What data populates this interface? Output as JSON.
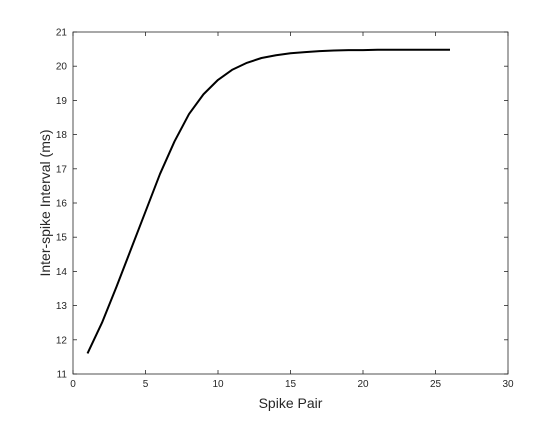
{
  "chart_data": {
    "type": "line",
    "title": "",
    "xlabel": "Spike Pair",
    "ylabel": "Inter-spike Interval (ms)",
    "xlim": [
      0,
      30
    ],
    "ylim": [
      11,
      21
    ],
    "xticks": [
      0,
      5,
      10,
      15,
      20,
      25,
      30
    ],
    "yticks": [
      11,
      12,
      13,
      14,
      15,
      16,
      17,
      18,
      19,
      20,
      21
    ],
    "grid": false,
    "legend": "none",
    "series": [
      {
        "color": "#000000",
        "x": [
          1,
          2,
          3,
          4,
          5,
          6,
          7,
          8,
          9,
          10,
          11,
          12,
          13,
          14,
          15,
          16,
          17,
          18,
          19,
          20,
          21,
          22,
          23,
          24,
          25,
          26
        ],
        "y": [
          11.6,
          12.5,
          13.55,
          14.65,
          15.75,
          16.85,
          17.8,
          18.6,
          19.18,
          19.6,
          19.9,
          20.1,
          20.24,
          20.32,
          20.38,
          20.41,
          20.44,
          20.46,
          20.47,
          20.47,
          20.48,
          20.48,
          20.48,
          20.48,
          20.48,
          20.48
        ]
      }
    ]
  }
}
